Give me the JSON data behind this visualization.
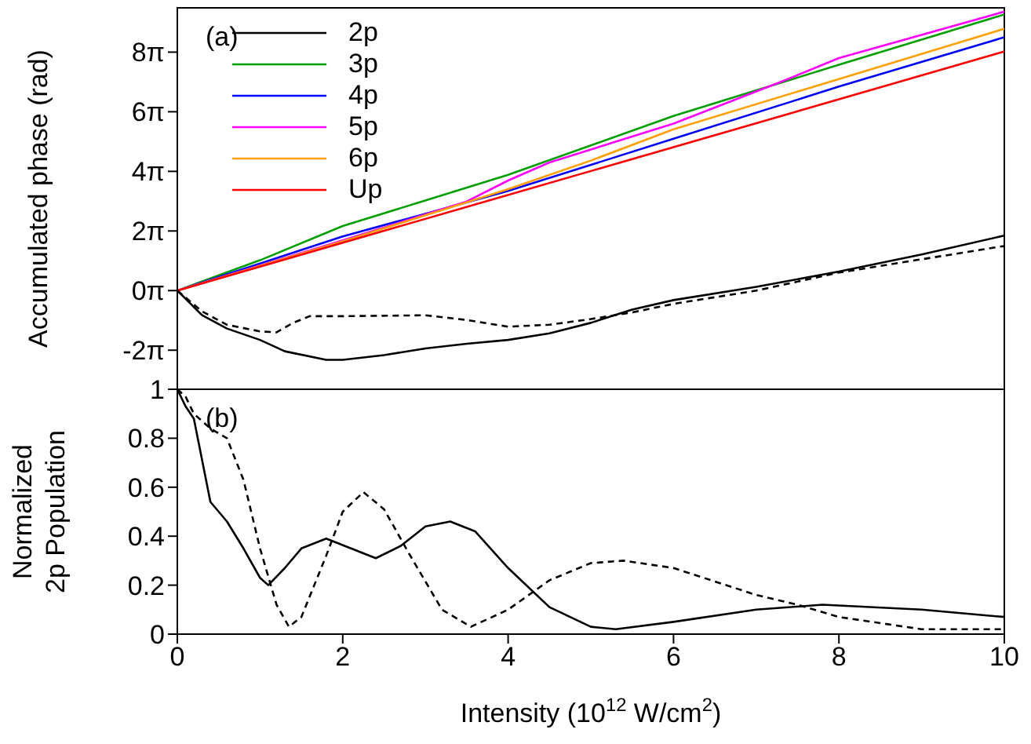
{
  "chart_data": [
    {
      "type": "line",
      "ylabel": "Accumulated phase (rad)",
      "annotations": [
        "(a)"
      ],
      "legend": "top left",
      "tick_labels": "y",
      "xlim": [
        0,
        10
      ],
      "xticks": [
        0,
        2,
        4,
        6,
        8,
        10
      ],
      "ylim": [
        -10.4,
        29.8
      ],
      "yticks": [
        {
          "value": -6.283,
          "label": "-2π"
        },
        {
          "value": 0,
          "label": "0π"
        },
        {
          "value": 6.283,
          "label": "2π"
        },
        {
          "value": 12.566,
          "label": "4π"
        },
        {
          "value": 18.85,
          "label": "6π"
        },
        {
          "value": 25.133,
          "label": "8π"
        }
      ],
      "series": [
        {
          "name": "2p",
          "color": "#000000",
          "line_style": "solid",
          "x": [
            0,
            0.3,
            0.6,
            1,
            1.3,
            1.8,
            2,
            2.5,
            3,
            3.5,
            4,
            4.5,
            5,
            5.5,
            6,
            7,
            8,
            9,
            10
          ],
          "values": [
            0,
            -2.6,
            -4.0,
            -5.2,
            -6.4,
            -7.3,
            -7.3,
            -6.8,
            -6.1,
            -5.6,
            -5.2,
            -4.5,
            -3.4,
            -2.0,
            -1.0,
            0.4,
            2.0,
            3.8,
            5.8
          ]
        },
        {
          "name": "3p",
          "color": "#00a000",
          "line_style": "solid",
          "x": [
            0,
            1,
            2,
            4,
            6,
            8,
            10
          ],
          "values": [
            0,
            3.2,
            6.8,
            12.2,
            18.4,
            23.8,
            29.1
          ]
        },
        {
          "name": "4p",
          "color": "#0000ff",
          "line_style": "solid",
          "x": [
            0,
            2,
            4,
            6,
            8,
            10
          ],
          "values": [
            0,
            5.7,
            10.5,
            16.0,
            21.5,
            26.7
          ]
        },
        {
          "name": "5p",
          "color": "#ff00ff",
          "line_style": "solid",
          "x": [
            0,
            2,
            3.5,
            4,
            4.5,
            6,
            7.3,
            8,
            10
          ],
          "values": [
            0,
            5.3,
            9.4,
            11.6,
            13.5,
            17.6,
            22.0,
            24.5,
            29.4
          ]
        },
        {
          "name": "6p",
          "color": "#ffa000",
          "line_style": "solid",
          "x": [
            0,
            2,
            3.5,
            4,
            5,
            6,
            8,
            10
          ],
          "values": [
            0,
            5.2,
            9.3,
            10.7,
            13.7,
            17.0,
            22.3,
            27.6
          ]
        },
        {
          "name": "Up",
          "color": "#ff0000",
          "line_style": "solid",
          "x": [
            0,
            10
          ],
          "values": [
            0,
            25.2
          ]
        },
        {
          "color": "#000000",
          "line_style": "dashed",
          "x": [
            0,
            0.3,
            0.6,
            1,
            1.2,
            1.4,
            1.6,
            2,
            3,
            3.5,
            4,
            4.5,
            5,
            5.5,
            6,
            7,
            8,
            9,
            10
          ],
          "values": [
            0,
            -2.2,
            -3.6,
            -4.3,
            -4.4,
            -3.4,
            -2.7,
            -2.7,
            -2.6,
            -3.1,
            -3.8,
            -3.6,
            -3.0,
            -2.3,
            -1.4,
            0,
            1.9,
            3.3,
            4.7
          ]
        }
      ]
    },
    {
      "type": "line",
      "xlabel": "Intensity (10$^{12}$ W/cm$^{2}$)",
      "ylabel": "Normalized\n2p Population",
      "annotations": [
        "(b)"
      ],
      "xlim": [
        0,
        10
      ],
      "xticks": [
        0,
        2,
        4,
        6,
        8,
        10
      ],
      "ylim": [
        0,
        1
      ],
      "yticks": [
        0,
        0.2,
        0.4,
        0.6,
        0.8,
        1
      ],
      "series": [
        {
          "color": "#000000",
          "line_style": "solid",
          "x": [
            0,
            0.1,
            0.2,
            0.3,
            0.4,
            0.6,
            0.8,
            1,
            1.1,
            1.3,
            1.5,
            1.8,
            2.1,
            2.4,
            2.7,
            3,
            3.3,
            3.6,
            4,
            4.5,
            5,
            5.3,
            6,
            7,
            7.8,
            9,
            10
          ],
          "values": [
            1,
            0.93,
            0.88,
            0.71,
            0.54,
            0.46,
            0.35,
            0.23,
            0.2,
            0.27,
            0.35,
            0.39,
            0.35,
            0.31,
            0.36,
            0.44,
            0.46,
            0.42,
            0.27,
            0.11,
            0.03,
            0.02,
            0.05,
            0.1,
            0.12,
            0.1,
            0.07
          ]
        },
        {
          "color": "#000000",
          "line_style": "dashed",
          "x": [
            0,
            0.1,
            0.2,
            0.4,
            0.6,
            0.8,
            1,
            1.2,
            1.35,
            1.5,
            1.8,
            2,
            2.25,
            2.5,
            2.8,
            3.2,
            3.55,
            4,
            4.5,
            5,
            5.4,
            6,
            7,
            7.5,
            8,
            9,
            10
          ],
          "values": [
            1,
            0.97,
            0.9,
            0.84,
            0.8,
            0.63,
            0.35,
            0.12,
            0.03,
            0.07,
            0.32,
            0.5,
            0.58,
            0.51,
            0.33,
            0.1,
            0.03,
            0.1,
            0.22,
            0.29,
            0.3,
            0.27,
            0.16,
            0.12,
            0.07,
            0.02,
            0.02
          ]
        }
      ]
    }
  ]
}
